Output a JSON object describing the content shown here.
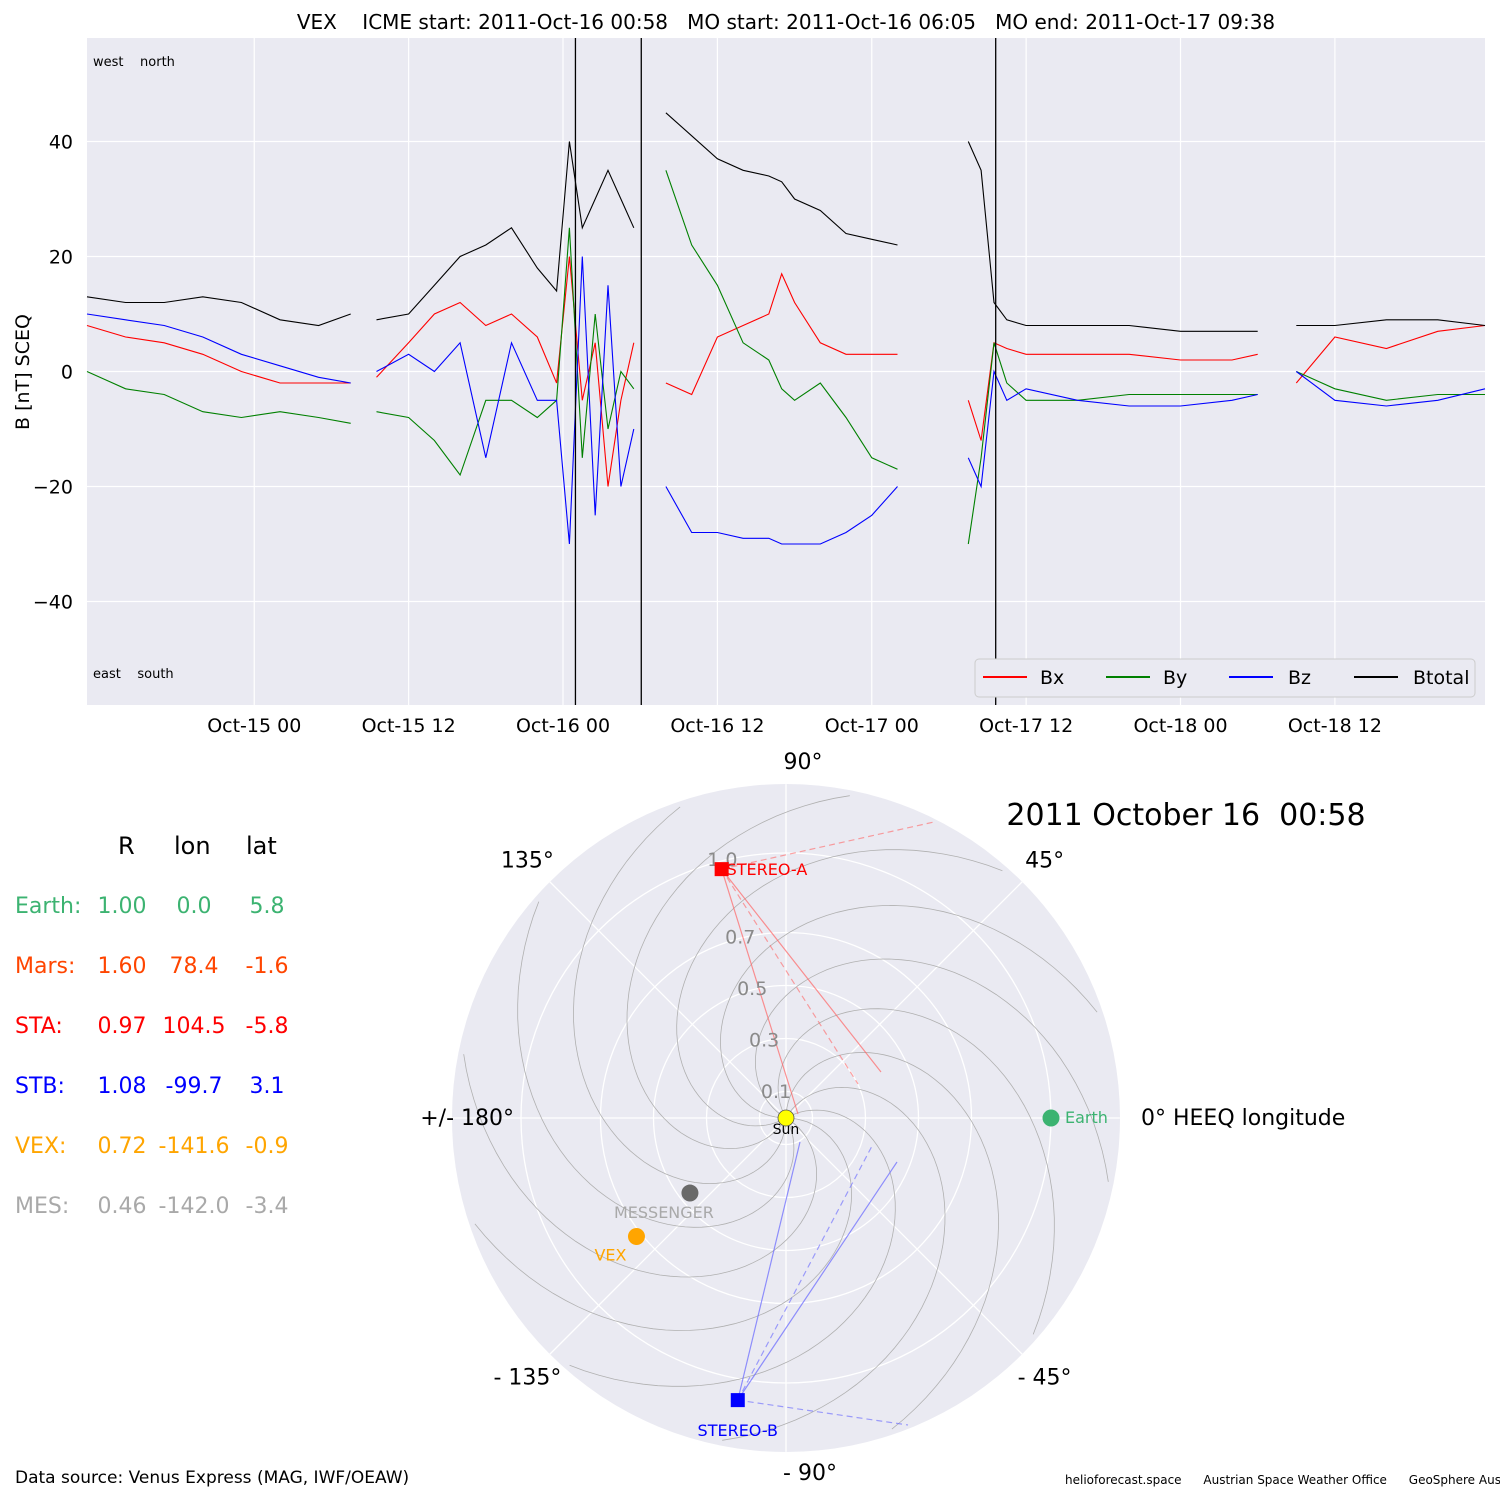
{
  "chart_data": [
    {
      "type": "line",
      "title": "VEX    ICME start: 2011-Oct-16 00:58   MO start: 2011-Oct-16 06:05   MO end: 2011-Oct-17 09:38",
      "ylabel": "B [nT] SCEQ",
      "ylim": [
        -58,
        58
      ],
      "yticks": [
        -40,
        -20,
        0,
        20,
        40
      ],
      "ytick_labels": [
        "−40",
        "−20",
        "0",
        "20",
        "40"
      ],
      "xlim": [
        "2011-10-14 11:00",
        "2011-10-18 23:40"
      ],
      "xticks": [
        "2011-10-15 00:00",
        "2011-10-15 12:00",
        "2011-10-16 00:00",
        "2011-10-16 12:00",
        "2011-10-17 00:00",
        "2011-10-17 12:00",
        "2011-10-18 00:00",
        "2011-10-18 12:00"
      ],
      "xtick_labels": [
        "Oct-15 00",
        "Oct-15 12",
        "Oct-16 00",
        "Oct-16 12",
        "Oct-17 00",
        "Oct-17 12",
        "Oct-18 00",
        "Oct-18 12"
      ],
      "corner_labels": {
        "top": "west    north",
        "bottom": "east    south"
      },
      "vlines": [
        "2011-10-16 00:58",
        "2011-10-16 06:05",
        "2011-10-17 09:38"
      ],
      "grid": true,
      "legend": {
        "placement": "bottom-right",
        "entries": [
          "Bx",
          "By",
          "Bz",
          "Btotal"
        ]
      },
      "series": [
        {
          "name": "Bx",
          "color": "#ff0000",
          "x": [
            "2011-10-14 11:00",
            "2011-10-14 14:00",
            "2011-10-14 17:00",
            "2011-10-14 20:00",
            "2011-10-14 23:00",
            "2011-10-15 02:00",
            "2011-10-15 05:00",
            "2011-10-15 07:30",
            null,
            "2011-10-15 09:30",
            "2011-10-15 12:00",
            "2011-10-15 14:00",
            "2011-10-15 16:00",
            "2011-10-15 18:00",
            "2011-10-15 20:00",
            "2011-10-15 22:00",
            "2011-10-15 23:30",
            "2011-10-16 00:30",
            "2011-10-16 01:30",
            "2011-10-16 02:30",
            "2011-10-16 03:30",
            "2011-10-16 04:30",
            "2011-10-16 05:30",
            null,
            "2011-10-16 08:00",
            "2011-10-16 10:00",
            "2011-10-16 12:00",
            "2011-10-16 14:00",
            "2011-10-16 16:00",
            "2011-10-16 17:00",
            "2011-10-16 18:00",
            "2011-10-16 20:00",
            "2011-10-16 22:00",
            "2011-10-17 00:00",
            "2011-10-17 02:00",
            null,
            "2011-10-17 07:30",
            "2011-10-17 08:30",
            "2011-10-17 09:30",
            "2011-10-17 10:30",
            "2011-10-17 12:00",
            "2011-10-17 16:00",
            "2011-10-17 20:00",
            "2011-10-18 00:00",
            "2011-10-18 04:00",
            "2011-10-18 06:00",
            null,
            "2011-10-18 09:00",
            "2011-10-18 12:00",
            "2011-10-18 16:00",
            "2011-10-18 20:00",
            "2011-10-18 23:40"
          ],
          "values": [
            8,
            6,
            5,
            3,
            0,
            -2,
            -2,
            -2,
            null,
            -1,
            5,
            10,
            12,
            8,
            10,
            6,
            -2,
            20,
            -5,
            5,
            -20,
            -5,
            5,
            null,
            -2,
            -4,
            6,
            8,
            10,
            17,
            12,
            5,
            3,
            3,
            3,
            null,
            -5,
            -12,
            5,
            4,
            3,
            3,
            3,
            2,
            2,
            3,
            null,
            -2,
            6,
            4,
            7,
            8
          ]
        },
        {
          "name": "By",
          "color": "#008000",
          "x": [
            "2011-10-14 11:00",
            "2011-10-14 14:00",
            "2011-10-14 17:00",
            "2011-10-14 20:00",
            "2011-10-14 23:00",
            "2011-10-15 02:00",
            "2011-10-15 05:00",
            "2011-10-15 07:30",
            null,
            "2011-10-15 09:30",
            "2011-10-15 12:00",
            "2011-10-15 14:00",
            "2011-10-15 16:00",
            "2011-10-15 18:00",
            "2011-10-15 20:00",
            "2011-10-15 22:00",
            "2011-10-15 23:30",
            "2011-10-16 00:30",
            "2011-10-16 01:30",
            "2011-10-16 02:30",
            "2011-10-16 03:30",
            "2011-10-16 04:30",
            "2011-10-16 05:30",
            null,
            "2011-10-16 08:00",
            "2011-10-16 10:00",
            "2011-10-16 12:00",
            "2011-10-16 14:00",
            "2011-10-16 16:00",
            "2011-10-16 17:00",
            "2011-10-16 18:00",
            "2011-10-16 20:00",
            "2011-10-16 22:00",
            "2011-10-17 00:00",
            "2011-10-17 02:00",
            null,
            "2011-10-17 07:30",
            "2011-10-17 08:30",
            "2011-10-17 09:30",
            "2011-10-17 10:30",
            "2011-10-17 12:00",
            "2011-10-17 16:00",
            "2011-10-17 20:00",
            "2011-10-18 00:00",
            "2011-10-18 04:00",
            "2011-10-18 06:00",
            null,
            "2011-10-18 09:00",
            "2011-10-18 12:00",
            "2011-10-18 16:00",
            "2011-10-18 20:00",
            "2011-10-18 23:40"
          ],
          "values": [
            0,
            -3,
            -4,
            -7,
            -8,
            -7,
            -8,
            -9,
            null,
            -7,
            -8,
            -12,
            -18,
            -5,
            -5,
            -8,
            -5,
            25,
            -15,
            10,
            -10,
            0,
            -3,
            null,
            35,
            22,
            15,
            5,
            2,
            -3,
            -5,
            -2,
            -8,
            -15,
            -17,
            null,
            -30,
            -15,
            5,
            -2,
            -5,
            -5,
            -4,
            -4,
            -4,
            -4,
            null,
            0,
            -3,
            -5,
            -4,
            -4
          ]
        },
        {
          "name": "Bz",
          "color": "#0000ff",
          "x": [
            "2011-10-14 11:00",
            "2011-10-14 14:00",
            "2011-10-14 17:00",
            "2011-10-14 20:00",
            "2011-10-14 23:00",
            "2011-10-15 02:00",
            "2011-10-15 05:00",
            "2011-10-15 07:30",
            null,
            "2011-10-15 09:30",
            "2011-10-15 12:00",
            "2011-10-15 14:00",
            "2011-10-15 16:00",
            "2011-10-15 18:00",
            "2011-10-15 20:00",
            "2011-10-15 22:00",
            "2011-10-15 23:30",
            "2011-10-16 00:30",
            "2011-10-16 01:30",
            "2011-10-16 02:30",
            "2011-10-16 03:30",
            "2011-10-16 04:30",
            "2011-10-16 05:30",
            null,
            "2011-10-16 08:00",
            "2011-10-16 10:00",
            "2011-10-16 12:00",
            "2011-10-16 14:00",
            "2011-10-16 16:00",
            "2011-10-16 17:00",
            "2011-10-16 18:00",
            "2011-10-16 20:00",
            "2011-10-16 22:00",
            "2011-10-17 00:00",
            "2011-10-17 02:00",
            null,
            "2011-10-17 07:30",
            "2011-10-17 08:30",
            "2011-10-17 09:30",
            "2011-10-17 10:30",
            "2011-10-17 12:00",
            "2011-10-17 16:00",
            "2011-10-17 20:00",
            "2011-10-18 00:00",
            "2011-10-18 04:00",
            "2011-10-18 06:00",
            null,
            "2011-10-18 09:00",
            "2011-10-18 12:00",
            "2011-10-18 16:00",
            "2011-10-18 20:00",
            "2011-10-18 23:40"
          ],
          "values": [
            10,
            9,
            8,
            6,
            3,
            1,
            -1,
            -2,
            null,
            0,
            3,
            0,
            5,
            -15,
            5,
            -5,
            -5,
            -30,
            20,
            -25,
            15,
            -20,
            -10,
            null,
            -20,
            -28,
            -28,
            -29,
            -29,
            -30,
            -30,
            -30,
            -28,
            -25,
            -20,
            null,
            -15,
            -20,
            0,
            -5,
            -3,
            -5,
            -6,
            -6,
            -5,
            -4,
            null,
            0,
            -5,
            -6,
            -5,
            -3
          ]
        },
        {
          "name": "Btotal",
          "color": "#000000",
          "x": [
            "2011-10-14 11:00",
            "2011-10-14 14:00",
            "2011-10-14 17:00",
            "2011-10-14 20:00",
            "2011-10-14 23:00",
            "2011-10-15 02:00",
            "2011-10-15 05:00",
            "2011-10-15 07:30",
            null,
            "2011-10-15 09:30",
            "2011-10-15 12:00",
            "2011-10-15 14:00",
            "2011-10-15 16:00",
            "2011-10-15 18:00",
            "2011-10-15 20:00",
            "2011-10-15 22:00",
            "2011-10-15 23:30",
            "2011-10-16 00:30",
            "2011-10-16 01:30",
            "2011-10-16 02:30",
            "2011-10-16 03:30",
            "2011-10-16 04:30",
            "2011-10-16 05:30",
            null,
            "2011-10-16 08:00",
            "2011-10-16 10:00",
            "2011-10-16 12:00",
            "2011-10-16 14:00",
            "2011-10-16 16:00",
            "2011-10-16 17:00",
            "2011-10-16 18:00",
            "2011-10-16 20:00",
            "2011-10-16 22:00",
            "2011-10-17 00:00",
            "2011-10-17 02:00",
            null,
            "2011-10-17 07:30",
            "2011-10-17 08:30",
            "2011-10-17 09:30",
            "2011-10-17 10:30",
            "2011-10-17 12:00",
            "2011-10-17 16:00",
            "2011-10-17 20:00",
            "2011-10-18 00:00",
            "2011-10-18 04:00",
            "2011-10-18 06:00",
            null,
            "2011-10-18 09:00",
            "2011-10-18 12:00",
            "2011-10-18 16:00",
            "2011-10-18 20:00",
            "2011-10-18 23:40"
          ],
          "values": [
            13,
            12,
            12,
            13,
            12,
            9,
            8,
            10,
            null,
            9,
            10,
            15,
            20,
            22,
            25,
            18,
            14,
            40,
            25,
            30,
            35,
            30,
            25,
            null,
            45,
            41,
            37,
            35,
            34,
            33,
            30,
            28,
            24,
            23,
            22,
            null,
            40,
            35,
            12,
            9,
            8,
            8,
            8,
            7,
            7,
            7,
            null,
            8,
            8,
            9,
            9,
            8
          ]
        }
      ]
    },
    {
      "type": "scatter",
      "projection": "polar",
      "title": "2011 October 16  00:58",
      "r_ticks": [
        0.1,
        0.3,
        0.5,
        0.7,
        1.0
      ],
      "r_tick_labels": [
        "0.1",
        "0.3",
        "0.5",
        "0.7",
        "1.0"
      ],
      "theta_labels": [
        {
          "deg": 0,
          "label": "0° HEEQ longitude"
        },
        {
          "deg": 45,
          "label": "45°"
        },
        {
          "deg": 90,
          "label": "90°"
        },
        {
          "deg": 135,
          "label": "135°"
        },
        {
          "deg": 180,
          "label": "+/- 180°"
        },
        {
          "deg": -135,
          "label": "- 135°"
        },
        {
          "deg": -90,
          "label": "- 90°"
        },
        {
          "deg": -45,
          "label": "- 45°"
        }
      ],
      "bodies": [
        {
          "name": "Sun",
          "r": 0.0,
          "lon": 0.0,
          "color": "#ffff00",
          "marker": "circle"
        },
        {
          "name": "Earth",
          "r": 1.0,
          "lon": 0.0,
          "color": "#3cb371",
          "marker": "circle"
        },
        {
          "name": "STEREO-A",
          "r": 0.97,
          "lon": 104.5,
          "color": "#ff0000",
          "marker": "square"
        },
        {
          "name": "STEREO-B",
          "r": 1.08,
          "lon": -99.7,
          "color": "#0000ff",
          "marker": "square"
        },
        {
          "name": "VEX",
          "r": 0.72,
          "lon": -141.6,
          "color": "#ffa500",
          "marker": "circle"
        },
        {
          "name": "MESSENGER",
          "r": 0.46,
          "lon": -142.0,
          "color": "#696969",
          "marker": "circle",
          "label_color": "#a9a9a9"
        }
      ],
      "table": {
        "columns": [
          "R",
          "lon",
          "lat"
        ],
        "rows": [
          {
            "name": "Earth:",
            "R": "1.00",
            "lon": "0.0",
            "lat": "5.8",
            "color": "#3cb371"
          },
          {
            "name": "Mars:",
            "R": "1.60",
            "lon": "78.4",
            "lat": "-1.6",
            "color": "#ff4500"
          },
          {
            "name": "STA:",
            "R": "0.97",
            "lon": "104.5",
            "lat": "-5.8",
            "color": "#ff0000"
          },
          {
            "name": "STB:",
            "R": "1.08",
            "lon": "-99.7",
            "lat": "3.1",
            "color": "#0000ff"
          },
          {
            "name": "VEX:",
            "R": "0.72",
            "lon": "-141.6",
            "lat": "-0.9",
            "color": "#ffa500"
          },
          {
            "name": "MES:",
            "R": "0.46",
            "lon": "-142.0",
            "lat": "-3.4",
            "color": "#a9a9a9"
          }
        ]
      }
    }
  ],
  "footer": {
    "source": "Data source: Venus Express (MAG, IWF/OEAW)",
    "credits": [
      "helioforecast.space",
      "Austrian Space Weather Office",
      "GeoSphere Austria"
    ]
  }
}
